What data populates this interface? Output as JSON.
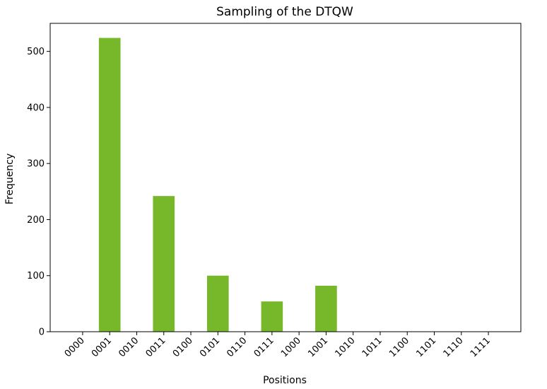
{
  "chart_data": {
    "type": "bar",
    "title": "Sampling of the DTQW",
    "xlabel": "Positions",
    "ylabel": "Frequency",
    "categories": [
      "0000",
      "0001",
      "0010",
      "0011",
      "0100",
      "0101",
      "0110",
      "0111",
      "1000",
      "1001",
      "1010",
      "1011",
      "1100",
      "1101",
      "1110",
      "1111"
    ],
    "values": [
      0,
      524,
      0,
      242,
      0,
      100,
      0,
      54,
      0,
      82,
      0,
      0,
      0,
      0,
      0,
      0
    ],
    "ylim": [
      0,
      550
    ],
    "yticks": [
      0,
      100,
      200,
      300,
      400,
      500
    ],
    "grid": false,
    "bar_color": "#76b82a"
  }
}
